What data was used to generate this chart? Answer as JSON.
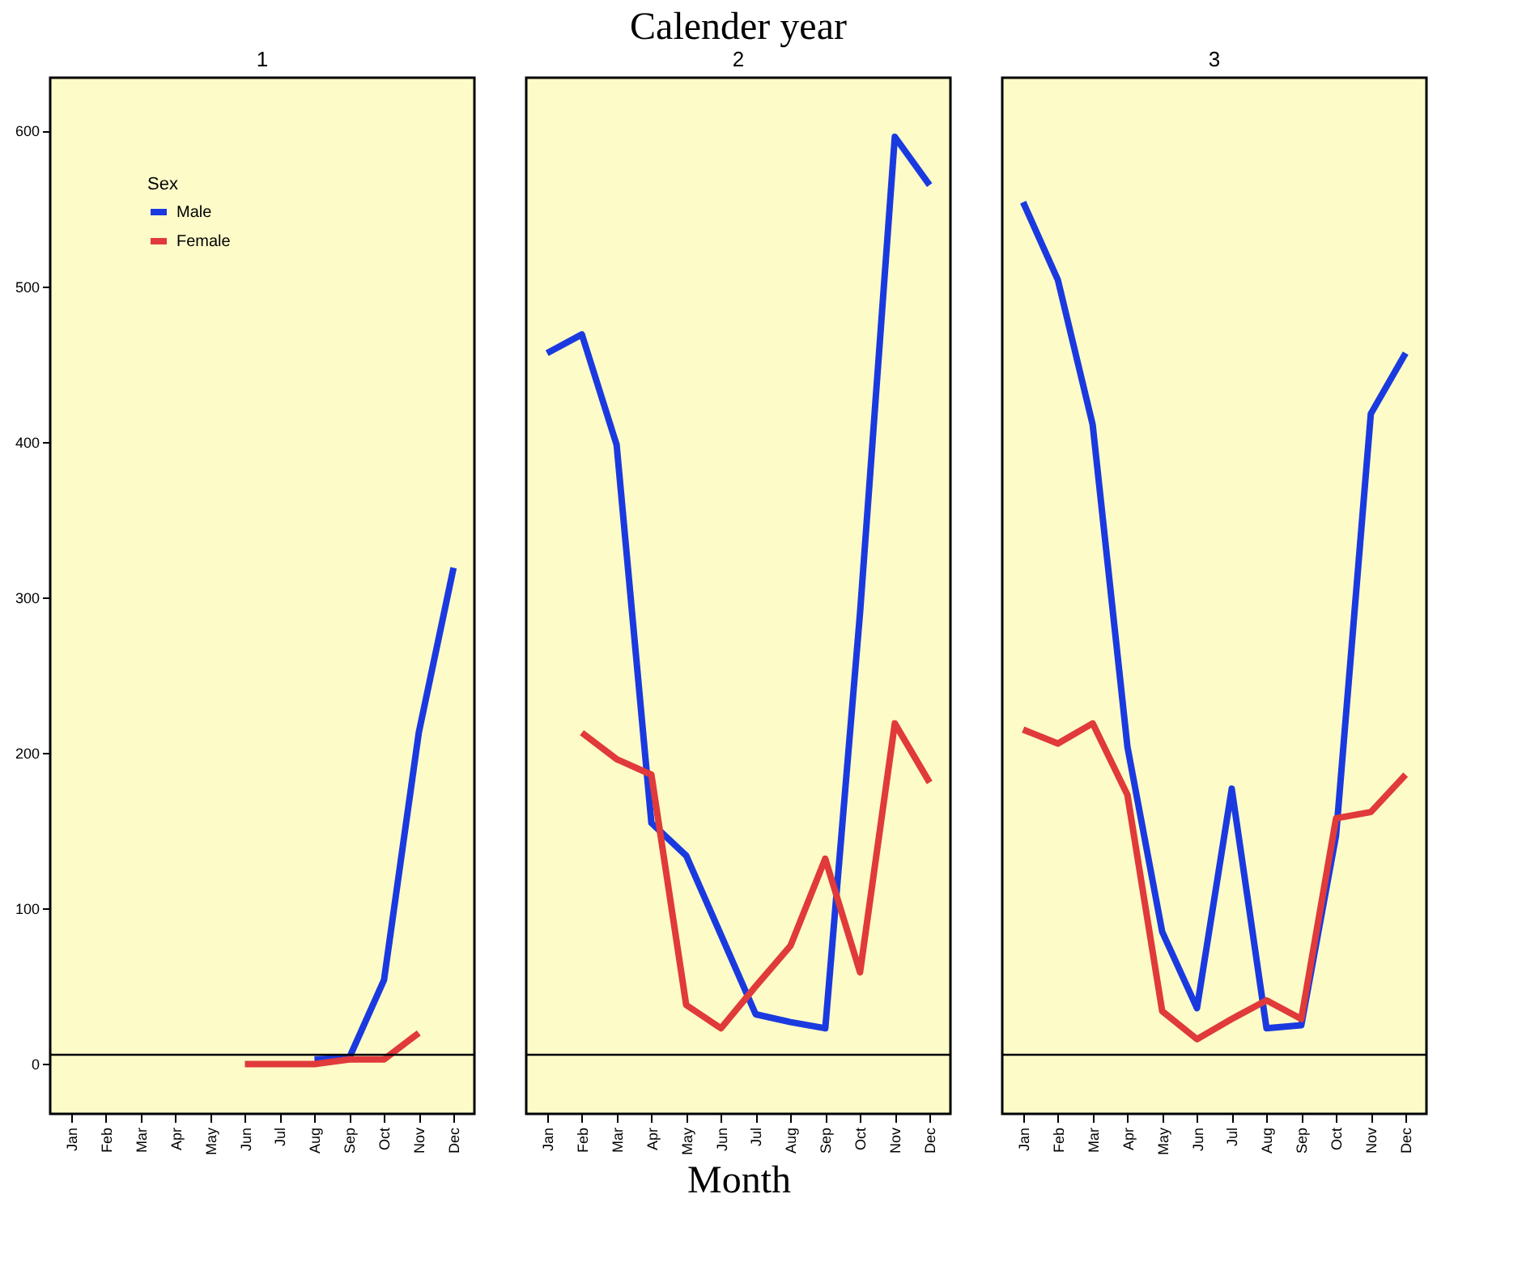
{
  "chart_data": [
    {
      "type": "line",
      "subtitle": "1",
      "ylabel": null,
      "legend_title": "Sex",
      "legend": "top left",
      "categories": [
        "Jan",
        "Feb",
        "Mar",
        "Apr",
        "May",
        "Jun",
        "Jul",
        "Aug",
        "Sep",
        "Oct",
        "Nov",
        "Dec"
      ],
      "ylim": [
        -32,
        634
      ],
      "yticks": [
        0,
        100,
        200,
        300,
        400,
        500,
        600
      ],
      "ref_lines": [
        {
          "axis": "y",
          "value": 6
        }
      ],
      "series": [
        {
          "name": "Male",
          "color": "#1a3ae0",
          "values": [
            null,
            null,
            null,
            null,
            null,
            null,
            null,
            3,
            4,
            54,
            213,
            319
          ]
        },
        {
          "name": "Female",
          "color": "#e03a3a",
          "values": [
            null,
            null,
            null,
            null,
            null,
            0,
            0,
            0,
            3,
            3,
            20,
            null
          ]
        }
      ]
    },
    {
      "type": "line",
      "title": "Calender year",
      "subtitle": "2",
      "xlabel": "Month",
      "categories": [
        "Jan",
        "Feb",
        "Mar",
        "Apr",
        "May",
        "Jun",
        "Jul",
        "Aug",
        "Sep",
        "Oct",
        "Nov",
        "Dec"
      ],
      "ylim": [
        -32,
        634
      ],
      "yticks": [
        0,
        100,
        200,
        300,
        400,
        500,
        600
      ],
      "tick_labels": "x",
      "ref_lines": [
        {
          "axis": "y",
          "value": 6
        }
      ],
      "series": [
        {
          "color": "#1a3ae0",
          "values": [
            457,
            469,
            398,
            155,
            134,
            83,
            32,
            27,
            23,
            290,
            596,
            565
          ]
        },
        {
          "color": "#e03a3a",
          "values": [
            null,
            213,
            196,
            186,
            38,
            23,
            50,
            76,
            132,
            59,
            219,
            181
          ]
        }
      ]
    },
    {
      "type": "line",
      "subtitle": "3",
      "categories": [
        "Jan",
        "Feb",
        "Mar",
        "Apr",
        "May",
        "Jun",
        "Jul",
        "Aug",
        "Sep",
        "Oct",
        "Nov",
        "Dec"
      ],
      "ylim": [
        -32,
        634
      ],
      "yticks": [
        0,
        100,
        200,
        300,
        400,
        500,
        600
      ],
      "tick_labels": "x",
      "ref_lines": [
        {
          "axis": "y",
          "value": 6
        }
      ],
      "series": [
        {
          "color": "#1a3ae0",
          "values": [
            554,
            504,
            411,
            204,
            85,
            36,
            177,
            23,
            25,
            147,
            418,
            457
          ]
        },
        {
          "color": "#e03a3a",
          "values": [
            215,
            206,
            219,
            173,
            34,
            16,
            29,
            41,
            29,
            158,
            162,
            186
          ]
        }
      ]
    }
  ]
}
